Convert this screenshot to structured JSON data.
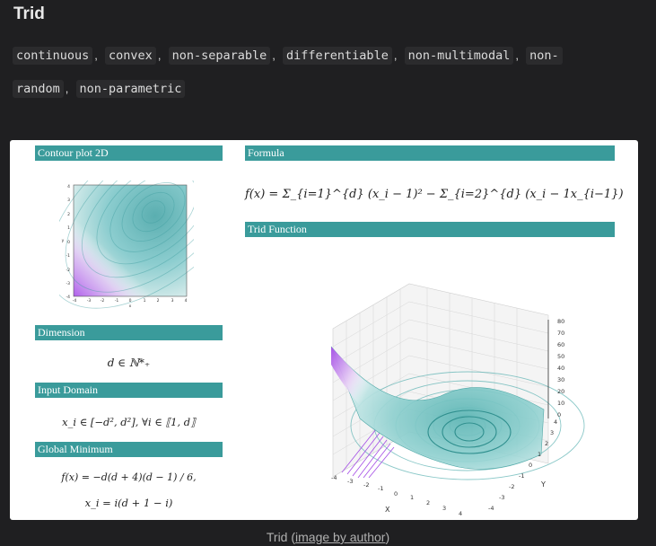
{
  "title": "Trid",
  "tags": [
    "continuous",
    "convex",
    "non-separable",
    "differentiable",
    "non-multimodal",
    "non-random",
    "non-parametric"
  ],
  "tags_line1": [
    "continuous",
    "convex",
    "non-separable",
    "differentiable",
    "non-multimodal"
  ],
  "tags_line2": [
    "random",
    "non-parametric"
  ],
  "tag_split_fragment": "non-",
  "separator": ",",
  "card": {
    "contour_header": "Contour plot 2D",
    "formula_header": "Formula",
    "function_header": "Trid Function",
    "dimension_header": "Dimension",
    "domain_header": "Input Domain",
    "minimum_header": "Global Minimum",
    "formula": "f(x) = Σ_{i=1}^{d} (x_i − 1)² − Σ_{i=2}^{d} (x_i − 1x_{i−1})",
    "dimension": "d ∈ ℕ*₊",
    "domain": "x_i ∈ [−d², d²], ∀i ∈ ⟦1, d⟧",
    "minimum_f": "f(x) = −d(d + 4)(d − 1) / 6,",
    "minimum_x": "x_i = i(d + 1 − i)",
    "contour_ticks": [
      "-4",
      "-3",
      "-2",
      "-1",
      "0",
      "1",
      "2",
      "3",
      "4"
    ],
    "contour_xlabel": "x",
    "contour_ylabel": "y",
    "surface_z_ticks": [
      "0",
      "10",
      "20",
      "30",
      "40",
      "50",
      "60",
      "70",
      "80"
    ],
    "surface_x_ticks": [
      "-4",
      "-3",
      "-2",
      "-1",
      "0",
      "1",
      "2",
      "3",
      "4"
    ],
    "surface_y_ticks": [
      "-4",
      "-3",
      "-2",
      "-1",
      "0",
      "1",
      "2",
      "3",
      "4"
    ],
    "surface_xlabel": "X",
    "surface_ylabel": "Y"
  },
  "caption": {
    "prefix": "Trid (",
    "link": "image by author",
    "suffix": ")"
  }
}
